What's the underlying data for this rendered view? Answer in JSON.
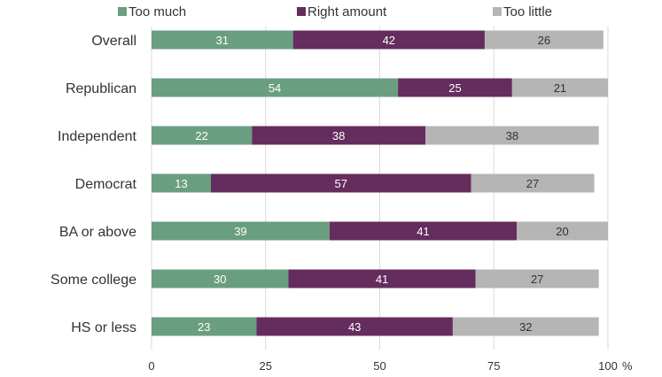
{
  "chart_data": {
    "type": "bar",
    "orientation": "horizontal",
    "stacked": true,
    "categories": [
      "Overall",
      "Republican",
      "Independent",
      "Democrat",
      "BA or above",
      "Some college",
      "HS or less"
    ],
    "series": [
      {
        "name": "Too much",
        "color": "#6a9e80",
        "label_color": "#ffffff",
        "values": [
          31,
          54,
          22,
          13,
          39,
          30,
          23
        ]
      },
      {
        "name": "Right amount",
        "color": "#652c5e",
        "label_color": "#ffffff",
        "values": [
          42,
          25,
          38,
          57,
          41,
          41,
          43
        ]
      },
      {
        "name": "Too little",
        "color": "#b5b5b5",
        "label_color": "#333333",
        "values": [
          26,
          21,
          38,
          27,
          20,
          27,
          32
        ]
      }
    ],
    "xlim": [
      0,
      100
    ],
    "xticks": [
      "0",
      "25",
      "50",
      "75",
      "100"
    ],
    "x_unit": "%",
    "grid": "vertical",
    "legend_position": "top"
  }
}
